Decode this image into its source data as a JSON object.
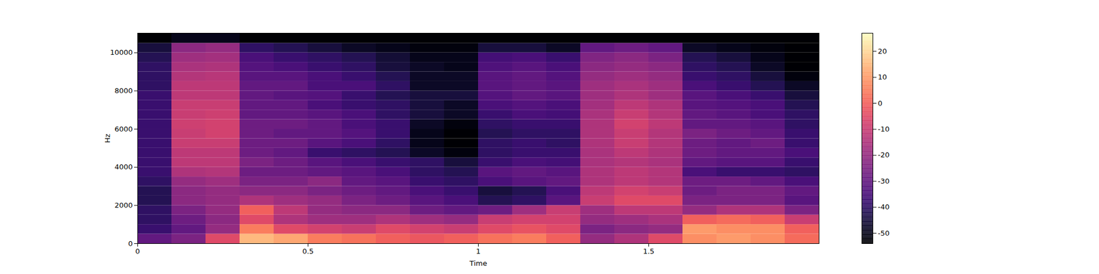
{
  "chart_data": {
    "type": "heatmap",
    "xlabel": "Time",
    "ylabel": "Hz",
    "xlim": [
      0,
      2.0
    ],
    "ylim": [
      0,
      11025
    ],
    "xticks": [
      0,
      0.5,
      1,
      1.5
    ],
    "yticks": [
      0,
      2000,
      4000,
      6000,
      8000,
      10000
    ],
    "color": "magma",
    "x_edges": [
      0,
      0.1,
      0.2,
      0.3,
      0.4,
      0.5,
      0.6,
      0.7,
      0.8,
      0.9,
      1.0,
      1.1,
      1.2,
      1.3,
      1.4,
      1.5,
      1.6,
      1.7,
      1.8,
      1.9,
      2.0
    ],
    "y_edges": [
      0,
      500,
      1000,
      1500,
      2000,
      2500,
      3000,
      3500,
      4000,
      4500,
      5000,
      5500,
      6000,
      6500,
      7000,
      7500,
      8000,
      8500,
      9000,
      9500,
      10000,
      10500,
      11025
    ],
    "cells": [
      [
        -30,
        -38,
        -40,
        -40,
        -42,
        -42,
        -40,
        -38,
        -38,
        -38,
        -38,
        -38,
        -38,
        -38,
        -38,
        -38,
        -40,
        -40,
        -40,
        -42,
        -45,
        -54
      ],
      [
        -25,
        -30,
        -28,
        -25,
        -22,
        -22,
        -20,
        -15,
        -12,
        -12,
        -10,
        -10,
        -9,
        -10,
        -10,
        -12,
        -12,
        -14,
        -16,
        -18,
        -22,
        -50
      ],
      [
        -5,
        -20,
        -22,
        -20,
        -20,
        -20,
        -18,
        -14,
        -12,
        -12,
        -10,
        -8,
        -8,
        -9,
        -10,
        -12,
        -12,
        -13,
        -15,
        -17,
        -20,
        -50
      ],
      [
        15,
        5,
        -5,
        0,
        -15,
        -22,
        -25,
        -28,
        -25,
        -28,
        -28,
        -28,
        -28,
        -30,
        -30,
        -30,
        -30,
        -32,
        -33,
        -35,
        -40,
        -54
      ],
      [
        12,
        -5,
        -15,
        -12,
        -18,
        -22,
        -25,
        -28,
        -28,
        -30,
        -28,
        -30,
        -28,
        -30,
        -30,
        -32,
        -30,
        -32,
        -35,
        -38,
        -42,
        -54
      ],
      [
        5,
        -8,
        -18,
        -20,
        -20,
        -25,
        -22,
        -30,
        -32,
        -38,
        -32,
        -30,
        -30,
        -32,
        -35,
        -33,
        -35,
        -35,
        -38,
        -40,
        -45,
        -54
      ],
      [
        3,
        -10,
        -18,
        -22,
        -25,
        -28,
        -30,
        -32,
        -35,
        -40,
        -35,
        -33,
        -35,
        -35,
        -38,
        -38,
        -35,
        -38,
        -40,
        -42,
        -48,
        -54
      ],
      [
        0,
        -5,
        -15,
        -22,
        -28,
        -30,
        -32,
        -35,
        -38,
        -42,
        -40,
        -38,
        -38,
        -40,
        -40,
        -42,
        -40,
        -42,
        -45,
        -46,
        -50,
        -54
      ],
      [
        -2,
        -8,
        -18,
        -28,
        -32,
        -35,
        -38,
        -40,
        -40,
        -48,
        -50,
        -50,
        -48,
        -45,
        -45,
        -45,
        -48,
        -48,
        -48,
        -50,
        -52,
        -54
      ],
      [
        0,
        -10,
        -20,
        -30,
        -35,
        -38,
        -40,
        -42,
        -45,
        -52,
        -54,
        -54,
        -52,
        -48,
        -48,
        -45,
        -48,
        -48,
        -50,
        -50,
        -52,
        -54
      ],
      [
        3,
        -5,
        -10,
        -28,
        -42,
        -45,
        -35,
        -32,
        -38,
        -40,
        -40,
        -42,
        -40,
        -38,
        -35,
        -33,
        -32,
        -32,
        -34,
        -36,
        -45,
        -54
      ],
      [
        5,
        -3,
        -8,
        -18,
        -40,
        -42,
        -32,
        -30,
        -35,
        -38,
        -38,
        -40,
        -38,
        -35,
        -33,
        -30,
        -30,
        -30,
        -32,
        -35,
        -45,
        -54
      ],
      [
        0,
        -5,
        -8,
        -10,
        -32,
        -35,
        -30,
        -32,
        -36,
        -38,
        -40,
        -40,
        -38,
        -36,
        -35,
        -32,
        -32,
        -33,
        -35,
        -38,
        -48,
        -54
      ],
      [
        -20,
        -25,
        -20,
        -18,
        -10,
        -12,
        -15,
        -15,
        -16,
        -16,
        -15,
        -15,
        -15,
        -16,
        -17,
        -18,
        -18,
        -20,
        -22,
        -24,
        -30,
        -54
      ],
      [
        -15,
        -22,
        -18,
        -12,
        -5,
        -8,
        -12,
        -12,
        -14,
        -12,
        -10,
        -10,
        -8,
        -10,
        -12,
        -15,
        -16,
        -18,
        -20,
        -22,
        -28,
        -54
      ],
      [
        -5,
        -20,
        -16,
        -12,
        -5,
        -10,
        -14,
        -14,
        -16,
        -15,
        -14,
        -14,
        -12,
        -14,
        -15,
        -18,
        -18,
        -20,
        -22,
        -25,
        -30,
        -54
      ],
      [
        8,
        10,
        0,
        -20,
        -25,
        -28,
        -28,
        -35,
        -30,
        -28,
        -28,
        -25,
        -30,
        -30,
        -32,
        -32,
        -35,
        -38,
        -40,
        -42,
        -48,
        -54
      ],
      [
        10,
        8,
        2,
        -15,
        -25,
        -25,
        -28,
        -38,
        -32,
        -30,
        -30,
        -28,
        -30,
        -32,
        -33,
        -35,
        -38,
        -40,
        -42,
        -45,
        -50,
        -54
      ],
      [
        8,
        8,
        0,
        -15,
        -25,
        -25,
        -30,
        -38,
        -32,
        -30,
        -28,
        -30,
        -32,
        -35,
        -35,
        -38,
        -42,
        -45,
        -48,
        -50,
        -52,
        -54
      ],
      [
        2,
        0,
        -10,
        -25,
        -32,
        -30,
        -35,
        -40,
        -38,
        -35,
        -38,
        -38,
        -40,
        -40,
        -42,
        -45,
        -48,
        -52,
        -54,
        -54,
        -54,
        -54
      ]
    ],
    "colorbar": {
      "range": [
        -54,
        27
      ],
      "ticks": [
        -50,
        -40,
        -30,
        -20,
        -10,
        0,
        10,
        20
      ]
    }
  }
}
